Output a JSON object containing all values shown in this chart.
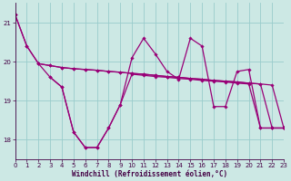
{
  "xlabel": "Windchill (Refroidissement éolien,°C)",
  "xlim": [
    0,
    23
  ],
  "ylim": [
    17.5,
    21.5
  ],
  "yticks": [
    18,
    19,
    20,
    21
  ],
  "xticks": [
    0,
    1,
    2,
    3,
    4,
    5,
    6,
    7,
    8,
    9,
    10,
    11,
    12,
    13,
    14,
    15,
    16,
    17,
    18,
    19,
    20,
    21,
    22,
    23
  ],
  "bg_color": "#cce8e4",
  "line_color": "#990077",
  "grid_color": "#99cccc",
  "line1_x": [
    0,
    1,
    2,
    3,
    4,
    5,
    6,
    7,
    8,
    9,
    10,
    11,
    12,
    13,
    14,
    15,
    16,
    17,
    18,
    19,
    20,
    21,
    22,
    23
  ],
  "line1_y": [
    21.2,
    20.4,
    19.95,
    19.9,
    19.85,
    19.82,
    19.8,
    19.78,
    19.75,
    19.73,
    19.7,
    19.68,
    19.65,
    19.62,
    19.6,
    19.57,
    19.55,
    19.52,
    19.5,
    19.48,
    19.45,
    19.43,
    19.4,
    18.3
  ],
  "line2_x": [
    2,
    3,
    4,
    5,
    6,
    7,
    8,
    9,
    10,
    11,
    12,
    13,
    14,
    15,
    16,
    17,
    18,
    19,
    20,
    21,
    22,
    23
  ],
  "line2_y": [
    19.95,
    19.9,
    19.85,
    19.82,
    19.8,
    19.78,
    19.75,
    19.73,
    19.7,
    19.68,
    19.65,
    19.62,
    19.6,
    19.57,
    19.55,
    19.52,
    19.5,
    19.48,
    19.45,
    19.43,
    18.3,
    18.3
  ],
  "line3_x": [
    3,
    4,
    5,
    6,
    7,
    8,
    9,
    10,
    11,
    12,
    13,
    14,
    15,
    16,
    17,
    18,
    19,
    20,
    21,
    22,
    23
  ],
  "line3_y": [
    19.6,
    19.35,
    18.2,
    17.8,
    17.8,
    18.3,
    18.9,
    19.68,
    19.65,
    19.62,
    19.6,
    19.57,
    19.55,
    19.52,
    19.5,
    19.48,
    19.45,
    19.43,
    18.3,
    18.3,
    18.3
  ],
  "line4_x": [
    0,
    1,
    2,
    3,
    4,
    5,
    6,
    7,
    8,
    9,
    10,
    11,
    12,
    13,
    14,
    15,
    16,
    17,
    18,
    19,
    20,
    21,
    22,
    23
  ],
  "line4_y": [
    21.2,
    20.4,
    19.95,
    19.6,
    19.35,
    18.2,
    17.8,
    17.8,
    18.3,
    18.9,
    20.1,
    20.6,
    20.2,
    19.75,
    19.55,
    20.6,
    20.4,
    18.85,
    18.85,
    19.75,
    19.8,
    18.3,
    18.3,
    18.3
  ]
}
